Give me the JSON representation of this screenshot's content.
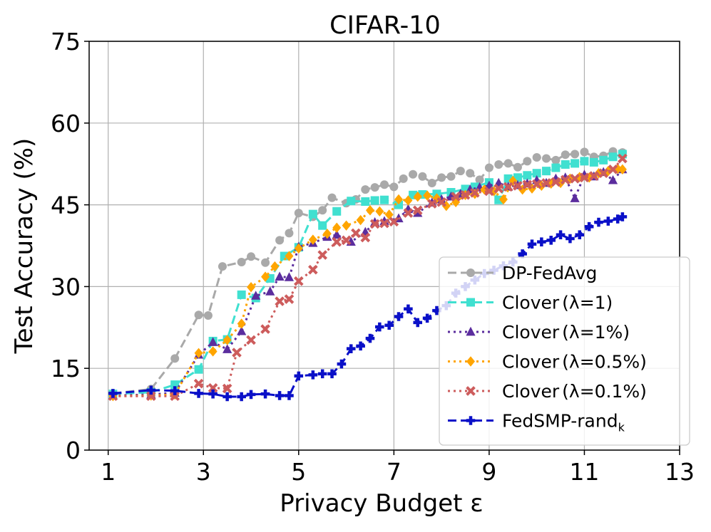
{
  "chart_data": {
    "type": "line",
    "title": "CIFAR-10",
    "xlabel": "Privacy Budget ε",
    "ylabel": "Test Accuracy (%)",
    "xlim": [
      0.6,
      13
    ],
    "ylim": [
      0,
      75
    ],
    "xticks": [
      1,
      3,
      5,
      7,
      9,
      11,
      13
    ],
    "yticks": [
      0,
      15,
      30,
      45,
      60,
      75
    ],
    "grid": true,
    "legend_position": "lower-right",
    "series": [
      {
        "name": "DP-FedAvg",
        "color": "#a9a9a9",
        "dash": "dashed",
        "marker": "circle",
        "legend_main": "DP-FedAvg",
        "legend_sub": "",
        "x": [
          1.1,
          1.9,
          2.4,
          2.9,
          3.1,
          3.4,
          3.8,
          4.0,
          4.3,
          4.6,
          4.8,
          5.0,
          5.3,
          5.5,
          5.7,
          6.0,
          6.2,
          6.4,
          6.6,
          6.8,
          7.0,
          7.2,
          7.4,
          7.6,
          7.8,
          8.0,
          8.2,
          8.4,
          8.6,
          8.8,
          9.0,
          9.2,
          9.4,
          9.6,
          9.8,
          10.0,
          10.2,
          10.4,
          10.6,
          10.8,
          11.0,
          11.2,
          11.4,
          11.6,
          11.8
        ],
        "values": [
          10.4,
          11.2,
          16.8,
          24.8,
          24.7,
          33.7,
          34.5,
          35.5,
          34.4,
          38.5,
          39.8,
          43.5,
          42.8,
          44.0,
          46.3,
          45.3,
          46.0,
          47.8,
          48.2,
          48.7,
          48.3,
          49.8,
          50.6,
          50.2,
          49.0,
          50.0,
          50.2,
          51.2,
          50.8,
          49.6,
          51.8,
          52.4,
          52.6,
          51.9,
          53.0,
          53.7,
          53.5,
          53.2,
          54.2,
          54.3,
          54.7,
          53.8,
          54.0,
          54.8,
          54.6
        ]
      },
      {
        "name": "Clover (λ=1)",
        "color": "#40e0d0",
        "dash": "dashed",
        "marker": "square",
        "legend_main": "Clover",
        "legend_sub": "(λ=1)",
        "x": [
          1.1,
          1.9,
          2.4,
          2.9,
          3.2,
          3.5,
          3.8,
          4.1,
          4.4,
          4.7,
          5.0,
          5.3,
          5.5,
          5.8,
          6.1,
          6.4,
          6.6,
          6.8,
          7.1,
          7.4,
          7.6,
          7.9,
          8.2,
          8.5,
          8.7,
          9.0,
          9.2,
          9.4,
          9.6,
          9.8,
          10.0,
          10.2,
          10.4,
          10.6,
          10.8,
          11.0,
          11.2,
          11.4,
          11.6,
          11.8
        ],
        "values": [
          10.3,
          10.6,
          12.0,
          14.8,
          20.0,
          20.3,
          28.5,
          27.9,
          31.5,
          35.6,
          37.2,
          43.3,
          41.2,
          43.8,
          45.7,
          45.6,
          45.8,
          45.9,
          45.0,
          46.8,
          46.9,
          47.0,
          47.3,
          47.9,
          48.3,
          49.1,
          45.9,
          49.8,
          50.0,
          50.4,
          50.8,
          51.2,
          51.8,
          52.4,
          52.6,
          53.0,
          52.8,
          53.2,
          53.8,
          54.3
        ]
      },
      {
        "name": "Clover (λ=1%)",
        "color": "#5b2d9e",
        "dash": "dotted",
        "marker": "triangle",
        "legend_main": "Clover",
        "legend_sub": "(λ=1%)",
        "x": [
          1.1,
          1.9,
          2.4,
          2.9,
          3.2,
          3.5,
          3.8,
          4.1,
          4.4,
          4.6,
          4.8,
          5.0,
          5.3,
          5.6,
          5.8,
          6.1,
          6.4,
          6.6,
          6.8,
          7.1,
          7.3,
          7.5,
          7.8,
          8.0,
          8.2,
          8.4,
          8.6,
          8.8,
          9.0,
          9.2,
          9.4,
          9.6,
          9.8,
          10.0,
          10.2,
          10.4,
          10.6,
          10.8,
          11.0,
          11.2,
          11.4,
          11.6,
          11.8
        ],
        "values": [
          10.0,
          10.2,
          10.5,
          17.5,
          19.8,
          18.5,
          21.8,
          28.3,
          29.1,
          31.8,
          31.7,
          37.3,
          38.0,
          39.1,
          39.5,
          38.2,
          40.0,
          41.8,
          42.0,
          42.5,
          44.2,
          43.5,
          45.4,
          46.0,
          46.5,
          47.0,
          47.8,
          48.2,
          48.5,
          49.0,
          48.3,
          48.6,
          48.9,
          49.5,
          49.0,
          49.8,
          50.0,
          46.2,
          50.5,
          50.2,
          51.0,
          49.5,
          51.5
        ]
      },
      {
        "name": "Clover (λ=0.5%)",
        "color": "#ffa500",
        "dash": "dotted",
        "marker": "diamond",
        "legend_main": "Clover",
        "legend_sub": "(λ=0.5%)",
        "x": [
          1.1,
          1.9,
          2.4,
          2.9,
          3.2,
          3.5,
          3.8,
          4.0,
          4.3,
          4.5,
          4.8,
          5.0,
          5.3,
          5.6,
          5.8,
          6.0,
          6.3,
          6.5,
          6.7,
          6.9,
          7.1,
          7.3,
          7.5,
          7.7,
          7.9,
          8.1,
          8.3,
          8.5,
          8.7,
          8.9,
          9.1,
          9.3,
          9.5,
          9.7,
          9.9,
          10.1,
          10.3,
          10.5,
          10.7,
          10.9,
          11.1,
          11.3,
          11.5,
          11.7,
          11.8
        ],
        "values": [
          9.9,
          10.0,
          10.2,
          17.8,
          18.1,
          20.2,
          23.2,
          29.9,
          31.8,
          33.7,
          35.6,
          37.0,
          38.6,
          39.7,
          40.8,
          41.2,
          42.2,
          44.0,
          43.8,
          43.2,
          46.0,
          45.8,
          46.5,
          46.7,
          46.2,
          44.8,
          45.5,
          46.8,
          47.0,
          47.8,
          47.5,
          46.0,
          49.4,
          47.8,
          48.0,
          48.5,
          48.9,
          49.0,
          49.8,
          50.1,
          50.0,
          50.8,
          51.2,
          51.6,
          51.5
        ]
      },
      {
        "name": "Clover (λ=0.1%)",
        "color": "#cd5c5c",
        "dash": "dotted",
        "marker": "cross",
        "legend_main": "Clover",
        "legend_sub": "(λ=0.1%)",
        "x": [
          1.1,
          1.9,
          2.4,
          2.9,
          3.2,
          3.5,
          3.7,
          4.0,
          4.3,
          4.6,
          4.8,
          5.0,
          5.3,
          5.5,
          5.8,
          6.0,
          6.2,
          6.4,
          6.6,
          6.8,
          7.0,
          7.3,
          7.5,
          7.8,
          8.0,
          8.3,
          8.5,
          8.7,
          9.0,
          9.2,
          9.4,
          9.6,
          9.8,
          10.0,
          10.2,
          10.4,
          10.6,
          10.8,
          11.0,
          11.2,
          11.4,
          11.6,
          11.8
        ],
        "values": [
          9.9,
          9.9,
          9.9,
          12.2,
          11.4,
          11.3,
          17.9,
          20.2,
          22.2,
          27.3,
          27.7,
          31.0,
          33.1,
          35.8,
          38.2,
          38.5,
          39.8,
          39.0,
          41.5,
          41.6,
          41.9,
          43.5,
          44.0,
          45.2,
          45.5,
          46.5,
          46.8,
          47.2,
          47.5,
          48.0,
          48.3,
          48.5,
          48.7,
          48.8,
          49.0,
          49.2,
          49.6,
          49.8,
          50.0,
          50.3,
          50.8,
          51.5,
          53.5
        ]
      },
      {
        "name": "FedSMP-rand_k",
        "color": "#0a10c8",
        "dash": "dashed",
        "marker": "plus",
        "legend_main": "FedSMP-rand",
        "legend_sub": "k",
        "x": [
          1.1,
          1.9,
          2.4,
          2.9,
          3.2,
          3.5,
          3.8,
          4.0,
          4.3,
          4.6,
          4.8,
          5.0,
          5.3,
          5.5,
          5.7,
          5.9,
          6.1,
          6.3,
          6.5,
          6.7,
          6.9,
          7.1,
          7.3,
          7.5,
          7.7,
          7.9,
          8.1,
          8.3,
          8.5,
          8.7,
          8.9,
          9.1,
          9.3,
          9.5,
          9.7,
          9.9,
          10.1,
          10.3,
          10.5,
          10.7,
          10.9,
          11.1,
          11.3,
          11.5,
          11.7,
          11.8
        ],
        "values": [
          10.4,
          11.0,
          10.9,
          10.4,
          10.3,
          9.8,
          9.8,
          10.2,
          10.3,
          10.0,
          10.0,
          13.6,
          13.8,
          14.0,
          14.0,
          15.8,
          18.6,
          19.1,
          20.5,
          22.6,
          22.9,
          24.5,
          25.9,
          23.4,
          24.2,
          25.6,
          26.5,
          28.8,
          30.0,
          31.2,
          32.4,
          33.0,
          33.8,
          34.5,
          36.0,
          37.8,
          38.2,
          38.5,
          39.5,
          38.8,
          39.5,
          41.0,
          41.8,
          42.0,
          42.4,
          42.8
        ]
      }
    ]
  }
}
